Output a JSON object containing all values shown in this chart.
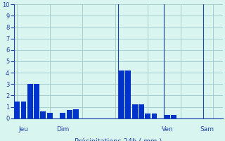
{
  "bar_values": [
    1.5,
    1.5,
    3.0,
    3.0,
    0.6,
    0.5,
    0.0,
    0.5,
    0.7,
    0.8,
    0.0,
    0.0,
    0.0,
    0.0,
    0.0,
    0.0,
    4.2,
    4.2,
    1.2,
    1.2,
    0.4,
    0.4,
    0.0,
    0.3,
    0.3,
    0.0,
    0.0,
    0.0,
    0.0,
    0.0,
    0.0,
    0.0
  ],
  "bar_color": "#0033cc",
  "background_color": "#d8f5f0",
  "grid_color": "#a0c8c8",
  "axis_color": "#2244aa",
  "tick_color": "#2244aa",
  "xlabel_color": "#2244aa",
  "ylim": [
    0,
    10
  ],
  "yticks": [
    0,
    1,
    2,
    3,
    4,
    5,
    6,
    7,
    8,
    9,
    10
  ],
  "day_labels": [
    "Jeu",
    "Dim",
    "Ven",
    "Sam"
  ],
  "day_label_bar_indices": [
    1,
    7,
    23,
    29
  ],
  "vline_positions": [
    15.5,
    22.5,
    28.5
  ],
  "n_bars": 32,
  "figsize": [
    3.2,
    2.0
  ],
  "dpi": 100
}
